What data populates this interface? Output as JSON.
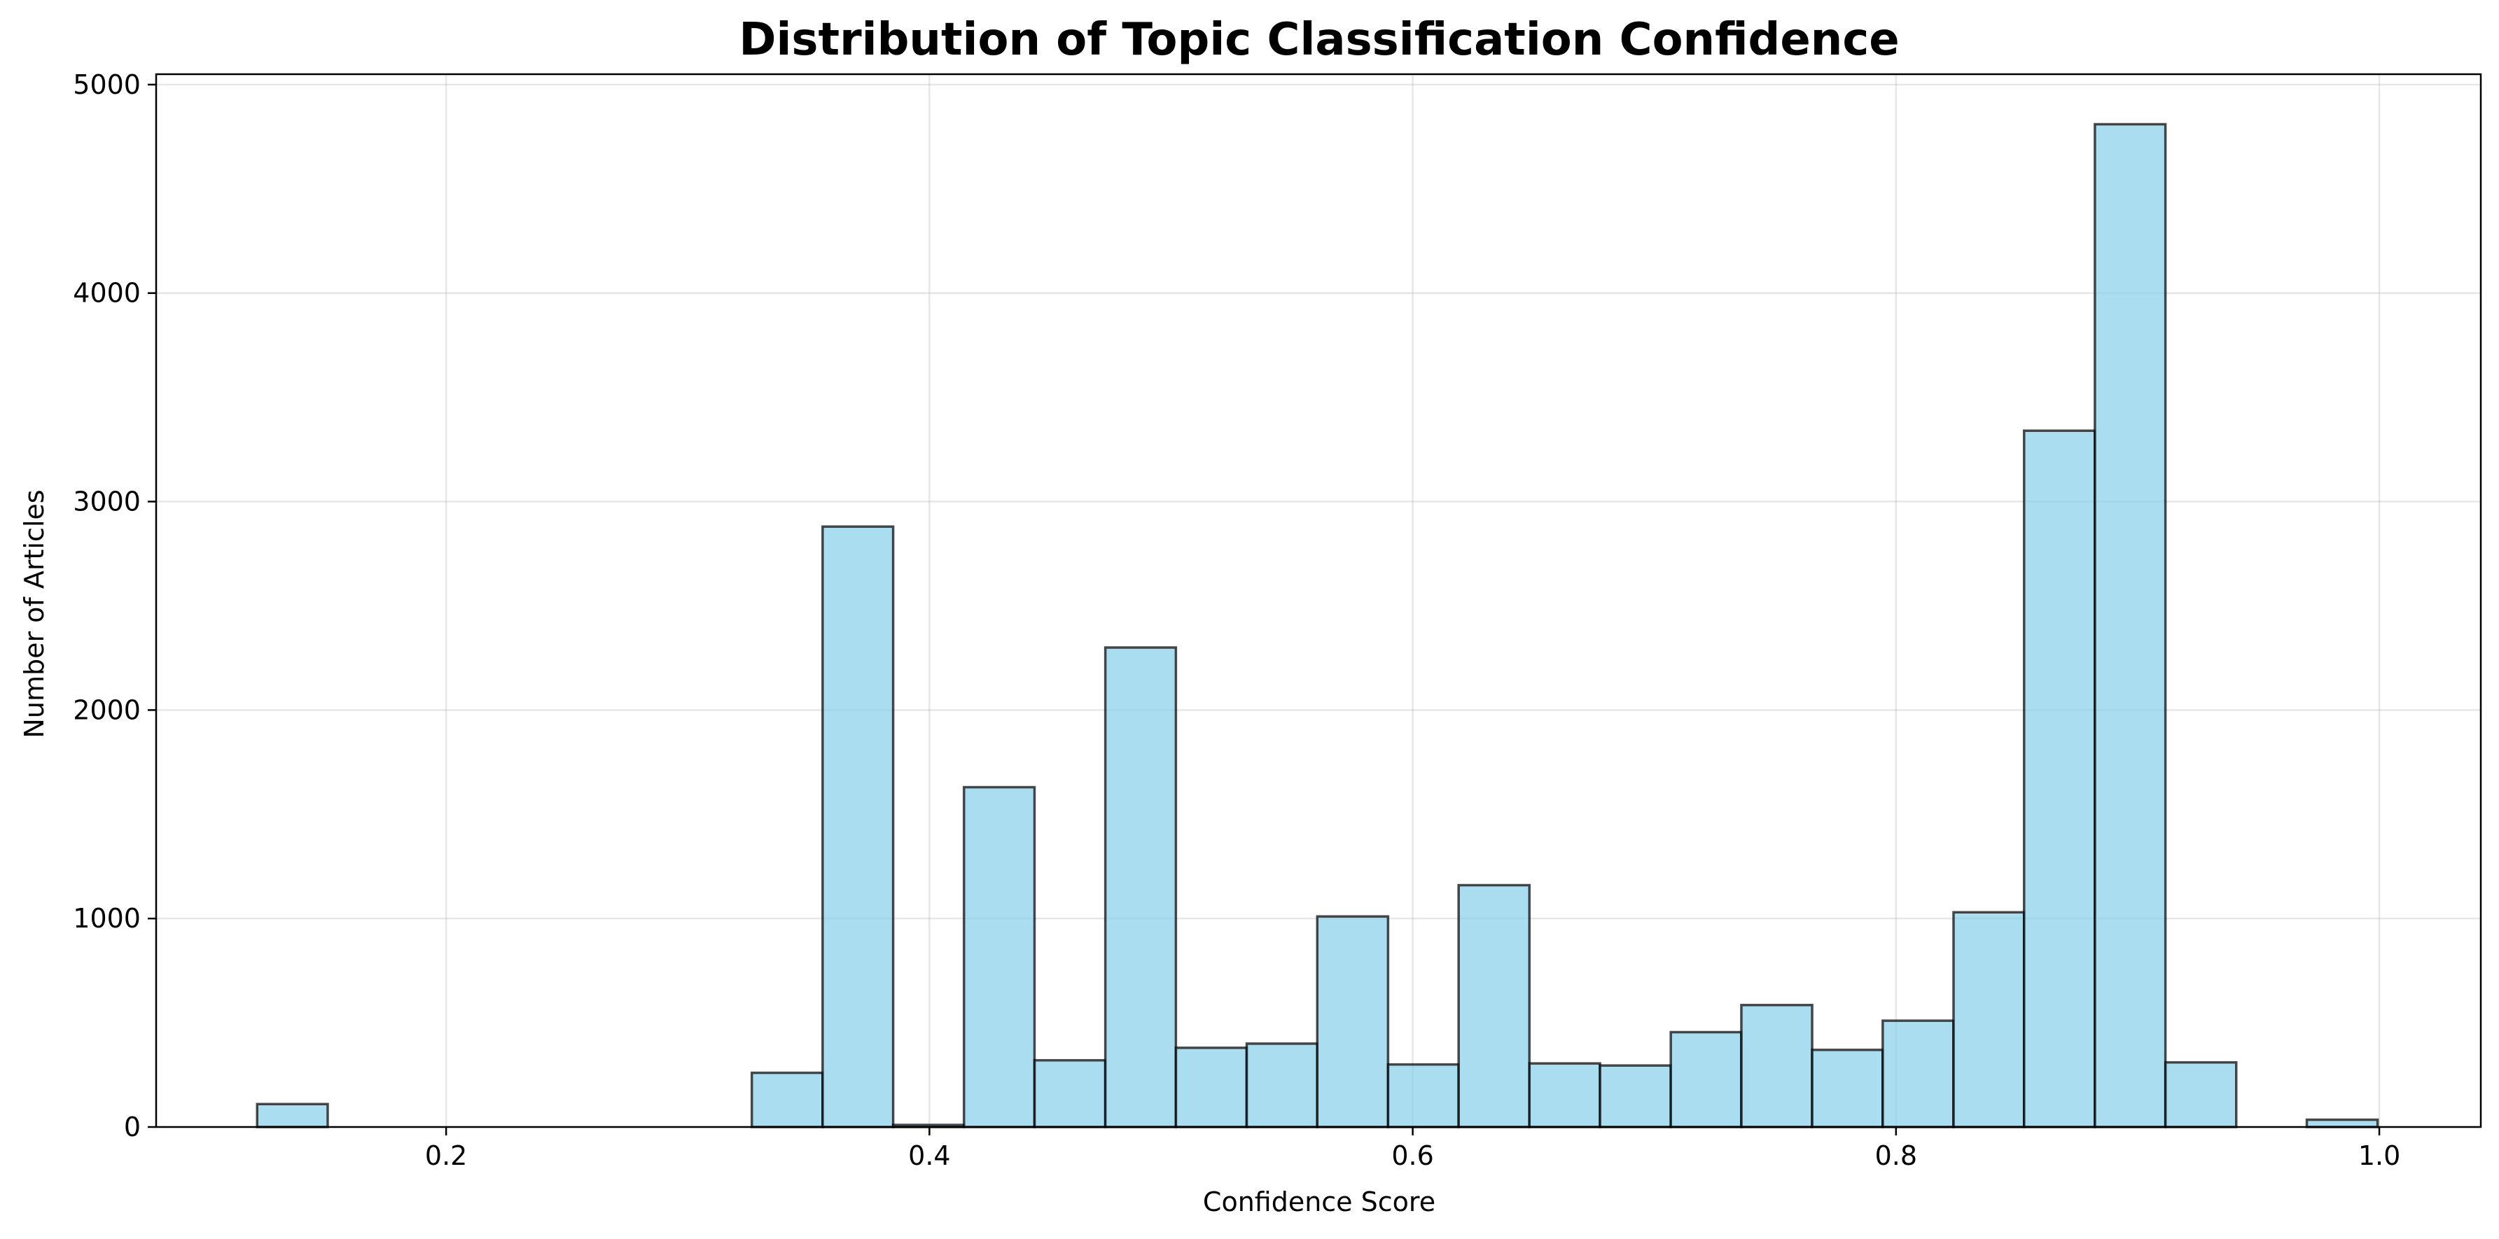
{
  "chart_data": {
    "type": "bar",
    "title": "Distribution of Topic Classification Confidence",
    "xlabel": "Confidence Score",
    "ylabel": "Number of Articles",
    "xlim": [
      0.08,
      1.042
    ],
    "ylim": [
      0,
      5050
    ],
    "xticks": [
      0.2,
      0.4,
      0.6,
      0.8,
      1.0
    ],
    "xtick_labels": [
      "0.2",
      "0.4",
      "0.6",
      "0.8",
      "1.0"
    ],
    "yticks": [
      0,
      1000,
      2000,
      3000,
      4000,
      5000
    ],
    "ytick_labels": [
      "0",
      "1000",
      "2000",
      "3000",
      "4000",
      "5000"
    ],
    "grid": true,
    "bar_color": "#87CEEB",
    "edge_color": "#000000",
    "bins": [
      {
        "x0": 0.1218,
        "x1": 0.151,
        "value": 110
      },
      {
        "x0": 0.151,
        "x1": 0.1803,
        "value": 0
      },
      {
        "x0": 0.1803,
        "x1": 0.2095,
        "value": 0
      },
      {
        "x0": 0.2095,
        "x1": 0.2388,
        "value": 0
      },
      {
        "x0": 0.2388,
        "x1": 0.268,
        "value": 0
      },
      {
        "x0": 0.268,
        "x1": 0.2973,
        "value": 0
      },
      {
        "x0": 0.2973,
        "x1": 0.3265,
        "value": 0
      },
      {
        "x0": 0.3265,
        "x1": 0.3558,
        "value": 260
      },
      {
        "x0": 0.3558,
        "x1": 0.385,
        "value": 2880
      },
      {
        "x0": 0.385,
        "x1": 0.4143,
        "value": 10
      },
      {
        "x0": 0.4143,
        "x1": 0.4435,
        "value": 1630
      },
      {
        "x0": 0.4435,
        "x1": 0.4728,
        "value": 320
      },
      {
        "x0": 0.4728,
        "x1": 0.502,
        "value": 2300
      },
      {
        "x0": 0.502,
        "x1": 0.5313,
        "value": 380
      },
      {
        "x0": 0.5313,
        "x1": 0.5605,
        "value": 400
      },
      {
        "x0": 0.5605,
        "x1": 0.5898,
        "value": 1010
      },
      {
        "x0": 0.5898,
        "x1": 0.619,
        "value": 300
      },
      {
        "x0": 0.619,
        "x1": 0.6483,
        "value": 1160
      },
      {
        "x0": 0.6483,
        "x1": 0.6775,
        "value": 305
      },
      {
        "x0": 0.6775,
        "x1": 0.7068,
        "value": 295
      },
      {
        "x0": 0.7068,
        "x1": 0.736,
        "value": 455
      },
      {
        "x0": 0.736,
        "x1": 0.7653,
        "value": 585
      },
      {
        "x0": 0.7653,
        "x1": 0.7945,
        "value": 370
      },
      {
        "x0": 0.7945,
        "x1": 0.8238,
        "value": 510
      },
      {
        "x0": 0.8238,
        "x1": 0.853,
        "value": 1030
      },
      {
        "x0": 0.853,
        "x1": 0.8823,
        "value": 3340
      },
      {
        "x0": 0.8823,
        "x1": 0.9115,
        "value": 4810
      },
      {
        "x0": 0.9115,
        "x1": 0.9408,
        "value": 310
      },
      {
        "x0": 0.9408,
        "x1": 0.97,
        "value": 0
      },
      {
        "x0": 0.97,
        "x1": 0.9993,
        "value": 35
      }
    ]
  }
}
